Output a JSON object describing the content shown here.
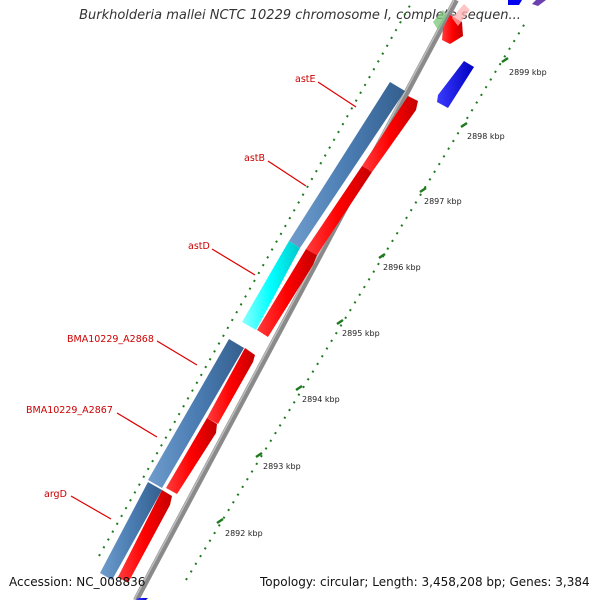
{
  "title": "Burkholderia mallei NCTC 10229 chromosome I, complete sequen...",
  "footer": {
    "accession": "Accession: NC_008836",
    "summary": "Topology: circular; Length: 3,458,208 bp; Genes: 3,384"
  },
  "gene_labels": [
    {
      "name": "astE"
    },
    {
      "name": "astB"
    },
    {
      "name": "astD"
    },
    {
      "name": "BMA10229_A2868"
    },
    {
      "name": "BMA10229_A2867"
    },
    {
      "name": "argD"
    }
  ],
  "scale_ticks": [
    {
      "label": "2899 kbp"
    },
    {
      "label": "2898 kbp"
    },
    {
      "label": "2897 kbp"
    },
    {
      "label": "2896 kbp"
    },
    {
      "label": "2895 kbp"
    },
    {
      "label": "2894 kbp"
    },
    {
      "label": "2893 kbp"
    },
    {
      "label": "2892 kbp"
    }
  ],
  "colors": {
    "background": "#ffffff",
    "backbone": "#8a8a8a",
    "gene_steelblue": "#4b7db3",
    "gene_cyan": "#00ffff",
    "gene_red": "#ff0000",
    "gene_blue": "#0000ee",
    "label_red": "#cc0000",
    "tick_green": "#1f7a1f"
  }
}
